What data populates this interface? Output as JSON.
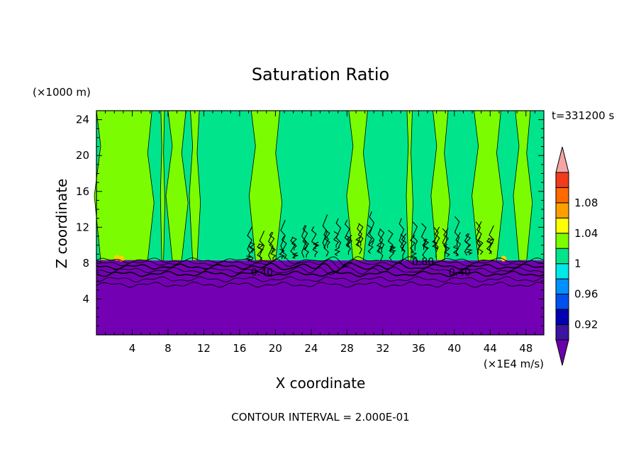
{
  "chart_data": {
    "type": "contour",
    "title": "Saturation Ratio",
    "xlabel": "X coordinate",
    "ylabel": "Z coordinate",
    "x_unit": "(×1E4 m/s)",
    "y_unit": "(×1000 m)",
    "time_label": "t=331200 s",
    "contour_interval": "CONTOUR INTERVAL = 2.000E-01",
    "xlim": [
      0,
      50
    ],
    "ylim": [
      0,
      25
    ],
    "xticks": [
      4,
      8,
      12,
      16,
      20,
      24,
      28,
      32,
      36,
      40,
      44,
      48
    ],
    "yticks": [
      4,
      8,
      12,
      16,
      20,
      24
    ],
    "surface_top": 8.3,
    "contour_labels": [
      {
        "x": 18.5,
        "z": 7.0,
        "text": "0.40"
      },
      {
        "x": 36.5,
        "z": 8.2,
        "text": "0.80"
      },
      {
        "x": 40.6,
        "z": 7.0,
        "text": "0.40"
      }
    ],
    "contour_levels": [
      0.4,
      0.6,
      0.8
    ],
    "colorbar": {
      "bins": [
        {
          "color": "#f4a4a4"
        },
        {
          "color": "#f03c1c"
        },
        {
          "color": "#ff6a00"
        },
        {
          "color": "#ffa000"
        },
        {
          "color": "#ffff00"
        },
        {
          "color": "#7cfc00"
        },
        {
          "color": "#00e58c"
        },
        {
          "color": "#00e8e8"
        },
        {
          "color": "#0090ff"
        },
        {
          "color": "#0050f0"
        },
        {
          "color": "#0000b0"
        },
        {
          "color": "#3c14a0"
        },
        {
          "color": "#6a00a8"
        }
      ],
      "labels": [
        "1.08",
        "1.04",
        "1",
        "0.96",
        "0.92"
      ]
    },
    "fill_colors": {
      "moist": "#7cfc00",
      "near_saturation": "#00e58c",
      "dry": "#7400b4",
      "supersaturated": "#ffd000"
    },
    "green_columns": [
      [
        0,
        6.2
      ],
      [
        7.2,
        7.6
      ],
      [
        8.0,
        10.0
      ],
      [
        10.5,
        11.5
      ],
      [
        17.3,
        20.5
      ],
      [
        28.2,
        30.3
      ],
      [
        34.7,
        35.3
      ],
      [
        37.6,
        39.3
      ],
      [
        42.2,
        45.2
      ],
      [
        46.8,
        48.5
      ]
    ]
  }
}
